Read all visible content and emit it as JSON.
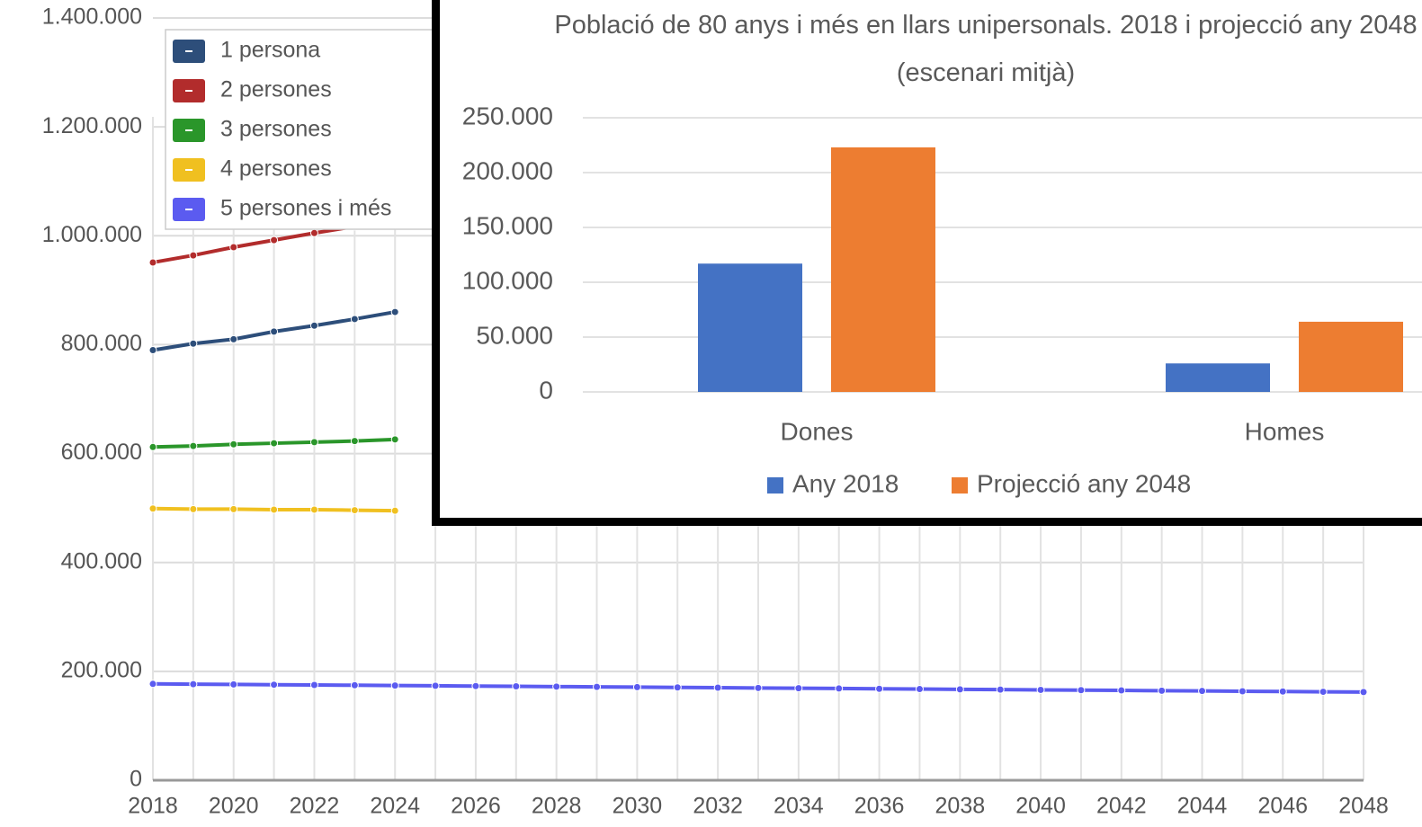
{
  "chart_data": [
    {
      "type": "line",
      "x": [
        2018,
        2019,
        2020,
        2021,
        2022,
        2023,
        2024,
        2025,
        2026,
        2027,
        2028,
        2029,
        2030,
        2031,
        2032,
        2033,
        2034,
        2035,
        2036,
        2037,
        2038,
        2039,
        2040,
        2041,
        2042,
        2043,
        2044,
        2045,
        2046,
        2047,
        2048
      ],
      "series": [
        {
          "name": "1 persona",
          "color": "#2d4e7a",
          "values": [
            790000,
            802000,
            810000,
            824000,
            835000,
            847000,
            860000,
            null,
            null,
            null,
            null,
            null,
            null,
            null,
            null,
            null,
            null,
            null,
            null,
            null,
            null,
            null,
            null,
            null,
            null,
            null,
            null,
            null,
            null,
            null,
            null
          ]
        },
        {
          "name": "2 persones",
          "color": "#b22c2c",
          "values": [
            951000,
            964000,
            979000,
            992000,
            1005000,
            1017000,
            null,
            null,
            null,
            null,
            null,
            null,
            null,
            null,
            null,
            null,
            null,
            null,
            null,
            null,
            null,
            null,
            null,
            null,
            null,
            null,
            null,
            null,
            null,
            null,
            null
          ]
        },
        {
          "name": "3 persones",
          "color": "#2a962a",
          "values": [
            612000,
            614000,
            617000,
            619000,
            621000,
            623000,
            626000,
            null,
            null,
            null,
            null,
            null,
            null,
            null,
            null,
            null,
            null,
            null,
            null,
            null,
            null,
            null,
            null,
            null,
            null,
            null,
            null,
            null,
            null,
            null,
            null
          ]
        },
        {
          "name": "4 persones",
          "color": "#f0c020",
          "values": [
            499000,
            498000,
            498000,
            497000,
            497000,
            496000,
            495000,
            null,
            null,
            null,
            null,
            null,
            null,
            null,
            null,
            null,
            null,
            null,
            null,
            null,
            null,
            null,
            null,
            null,
            null,
            null,
            null,
            null,
            null,
            null,
            null
          ]
        },
        {
          "name": "5 persones i més",
          "color": "#5b5bf0",
          "values": [
            177000,
            176500,
            176000,
            175500,
            175000,
            174500,
            174000,
            173500,
            173000,
            172500,
            172000,
            171500,
            171000,
            170500,
            170000,
            169500,
            169000,
            168500,
            168000,
            167500,
            167000,
            166500,
            166000,
            165500,
            165000,
            164500,
            164000,
            163500,
            163000,
            162500,
            162000
          ]
        }
      ],
      "xlim": [
        2018,
        2048
      ],
      "xticks": [
        2018,
        2020,
        2022,
        2024,
        2026,
        2028,
        2030,
        2032,
        2034,
        2036,
        2038,
        2040,
        2042,
        2044,
        2046,
        2048
      ],
      "ylim": [
        0,
        1400000
      ],
      "yticks": [
        0,
        {
          "value": 200000,
          "label": "200.000"
        },
        {
          "value": 400000,
          "label": "400.000"
        },
        {
          "value": 600000,
          "label": "600.000"
        },
        {
          "value": 800000,
          "label": "800.000"
        },
        {
          "value": 1000000,
          "label": "1.000.000"
        },
        {
          "value": 1200000,
          "label": "1.200.000"
        },
        {
          "value": 1400000,
          "label": "1.400.000"
        }
      ],
      "grid": true,
      "legend": "top-left"
    },
    {
      "type": "bar",
      "title": "Població de 80 anys i més en llars unipersonals. 2018 i projecció any 2048 (escenari mitjà)",
      "categories": [
        "Dones",
        "Homes"
      ],
      "series": [
        {
          "name": "Any 2018",
          "color": "#4472c4",
          "values": [
            117000,
            26000
          ]
        },
        {
          "name": "Projecció any 2048",
          "color": "#ed7d31",
          "values": [
            223000,
            64000
          ]
        }
      ],
      "ylim": [
        0,
        250000
      ],
      "yticks": [
        0,
        {
          "value": 50000,
          "label": "50.000"
        },
        {
          "value": 100000,
          "label": "100.000"
        },
        {
          "value": 150000,
          "label": "150.000"
        },
        {
          "value": 200000,
          "label": "200.000"
        },
        {
          "value": 250000,
          "label": "250.000"
        }
      ],
      "grid": true,
      "legend": "bottom"
    }
  ]
}
